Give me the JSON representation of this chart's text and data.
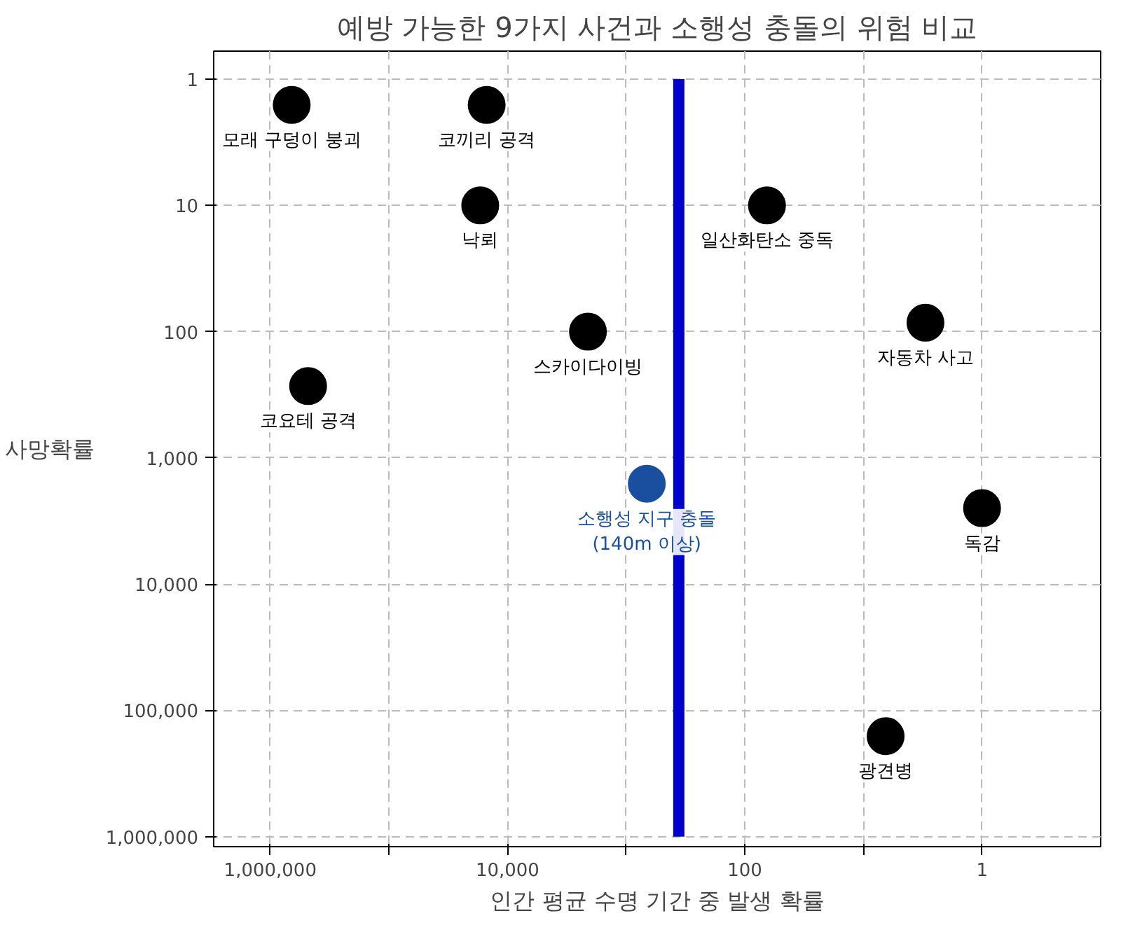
{
  "chart_data": {
    "type": "scatter",
    "title": "예방 가능한 9가지 사건과 소행성 충돌의 위험 비교",
    "xlabel": "인간 평균 수명 기간 중 발생 확률",
    "ylabel": "사망확률",
    "log": "xy",
    "grid": true,
    "marker": "circle",
    "xlim": [
      3000000,
      0.1
    ],
    "ylim": [
      1200000,
      0.6
    ],
    "xticks": [
      {
        "value": 1000000,
        "label": "1,000,000"
      },
      {
        "value": 100000,
        "label": null
      },
      {
        "value": 10000,
        "label": "10,000"
      },
      {
        "value": 1000,
        "label": null
      },
      {
        "value": 100,
        "label": "100"
      },
      {
        "value": 10,
        "label": null
      },
      {
        "value": 1,
        "label": "1"
      }
    ],
    "yticks": [
      {
        "value": 1,
        "label": "1"
      },
      {
        "value": 10,
        "label": "10"
      },
      {
        "value": 100,
        "label": "100"
      },
      {
        "value": 1000,
        "label": "1,000"
      },
      {
        "value": 10000,
        "label": "10,000"
      },
      {
        "value": 100000,
        "label": "100,000"
      },
      {
        "value": 1000000,
        "label": "1,000,000"
      }
    ],
    "series": [
      {
        "name": "모래 구덩이 붕괴",
        "color": "#000000",
        "x": [
          660000
        ],
        "values": [
          1.6
        ]
      },
      {
        "name": "코끼리 공격",
        "color": "#000000",
        "x": [
          15000
        ],
        "values": [
          1.6
        ]
      },
      {
        "name": "낙뢰",
        "color": "#000000",
        "x": [
          17000
        ],
        "values": [
          10
        ]
      },
      {
        "name": "일산화탄소 중독",
        "color": "#000000",
        "x": [
          65
        ],
        "values": [
          10
        ]
      },
      {
        "name": "자동차 사고",
        "color": "#000000",
        "x": [
          3
        ],
        "values": [
          85
        ]
      },
      {
        "name": "스카이다이빙",
        "color": "#000000",
        "x": [
          2100
        ],
        "values": [
          100
        ]
      },
      {
        "name": "코요테 공격",
        "color": "#000000",
        "x": [
          480000
        ],
        "values": [
          270
        ]
      },
      {
        "name": "소행성 지구 충돌\n(140m 이상)",
        "color": "#1a4fa0",
        "x": [
          670
        ],
        "values": [
          1600
        ]
      },
      {
        "name": "독감",
        "color": "#000000",
        "x": [
          1
        ],
        "values": [
          2500
        ]
      },
      {
        "name": "광견병",
        "color": "#000000",
        "x": [
          6.5
        ],
        "values": [
          160000
        ]
      },
      {
        "type": "line",
        "marker": "none",
        "color": "#0000cc",
        "x": [
          360,
          360
        ],
        "values": [
          1,
          1000000
        ]
      }
    ]
  }
}
